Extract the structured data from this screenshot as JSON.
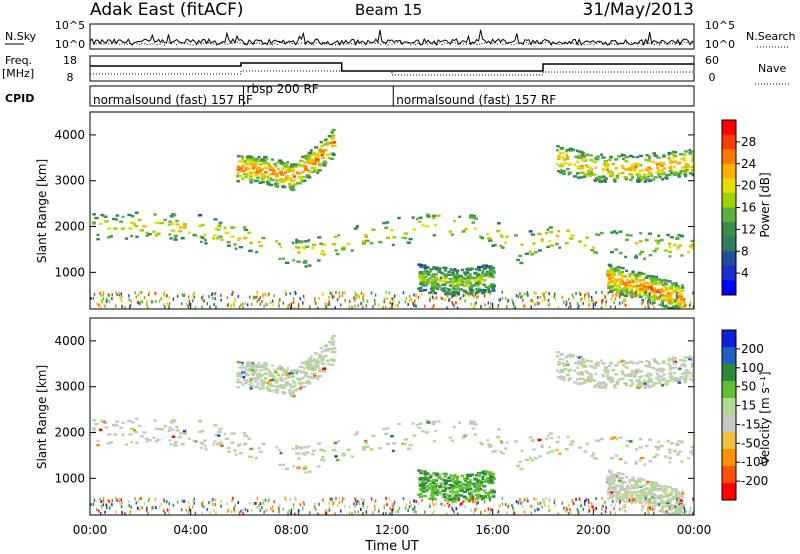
{
  "header": {
    "title": "Adak East (fitACF)",
    "beam": "Beam 15",
    "date": "31/May/2013"
  },
  "labels": {
    "nsky": "N.Sky",
    "nsearch": "N.Search",
    "freq": "Freq.",
    "freq_unit": "[MHz]",
    "nave": "Nave",
    "cpid": "CPID",
    "xlabel": "Time UT",
    "ylabel": "Slant Range [km]"
  },
  "strip_ticks": {
    "noise_left": [
      "10^5",
      "10^0"
    ],
    "noise_right": [
      "10^5",
      "10^0"
    ],
    "freq_left": [
      "18",
      "8"
    ],
    "nave_right": [
      "60",
      "0"
    ]
  },
  "cpid_segments": [
    {
      "label": "normalsound (fast) 157 RF",
      "start_hour": 0.0,
      "end_hour": 6.1
    },
    {
      "label": "rbsp 200 RF",
      "start_hour": 6.1,
      "end_hour": 12.05
    },
    {
      "label": "normalsound (fast) 157 RF",
      "start_hour": 12.05,
      "end_hour": 24.0
    }
  ],
  "colorbars": {
    "power": {
      "title": "Power [dB]",
      "ticks": [
        "28",
        "24",
        "20",
        "16",
        "12",
        "8",
        "4"
      ],
      "colors": [
        "#ff0000",
        "#ff3c00",
        "#ff7800",
        "#ffb000",
        "#e6dc00",
        "#a0d000",
        "#5cb040",
        "#3a8c4a",
        "#2f7d5c",
        "#1f4fa0",
        "#1a2fd0",
        "#0000ff"
      ]
    },
    "velocity": {
      "title": "Velocity [m s⁻¹]",
      "ticks": [
        "200",
        "100",
        "50",
        "15",
        "-15",
        "-50",
        "-100",
        "-200"
      ],
      "colors": [
        "#1020e0",
        "#2060c0",
        "#2a8a3a",
        "#60c030",
        "#b0d890",
        "#c8c8c8",
        "#f0c040",
        "#ff9000",
        "#ff5000",
        "#ff0000"
      ]
    }
  },
  "chart_data": [
    {
      "type": "heatmap",
      "name": "power",
      "ylabel": "Slant Range [km]",
      "ylim": [
        200,
        4500
      ],
      "yticks": [
        1000,
        2000,
        3000,
        4000
      ],
      "xlim": [
        0,
        24
      ],
      "xticks": [
        "00:00",
        "04:00",
        "08:00",
        "12:00",
        "16:00",
        "20:00",
        "00:00"
      ],
      "zlabel": "Power [dB]",
      "zlim": [
        0,
        32
      ],
      "echo_bands": [
        {
          "t": [
            0,
            2,
            4,
            6,
            7.5,
            8.5,
            9.5,
            10.5,
            12,
            14,
            16,
            17,
            18,
            20,
            22,
            24
          ],
          "range": [
            2000,
            2050,
            2000,
            1800,
            1500,
            1450,
            1600,
            1800,
            1900,
            2100,
            1900,
            1500,
            1800,
            1700,
            1600,
            1550
          ],
          "power": 20
        },
        {
          "t": [
            5.8,
            7,
            8,
            9,
            9.7
          ],
          "range": [
            3300,
            3250,
            3100,
            3500,
            3900
          ],
          "power": 24
        },
        {
          "t": [
            18.5,
            20,
            22,
            24
          ],
          "range": [
            3500,
            3300,
            3300,
            3450
          ],
          "power": 22
        },
        {
          "t": [
            13,
            14.5,
            16
          ],
          "range": [
            900,
            800,
            900
          ],
          "power": 16
        },
        {
          "t": [
            20.5,
            22,
            23.5
          ],
          "range": [
            900,
            700,
            450
          ],
          "power": 24
        }
      ]
    },
    {
      "type": "heatmap",
      "name": "velocity",
      "ylabel": "Slant Range [km]",
      "ylim": [
        200,
        4500
      ],
      "yticks": [
        1000,
        2000,
        3000,
        4000
      ],
      "xlim": [
        0,
        24
      ],
      "xticks": [
        "00:00",
        "04:00",
        "08:00",
        "12:00",
        "16:00",
        "20:00",
        "00:00"
      ],
      "xlabel": "Time UT",
      "zlabel": "Velocity [m s⁻¹]",
      "zlim": [
        -200,
        200
      ]
    }
  ]
}
